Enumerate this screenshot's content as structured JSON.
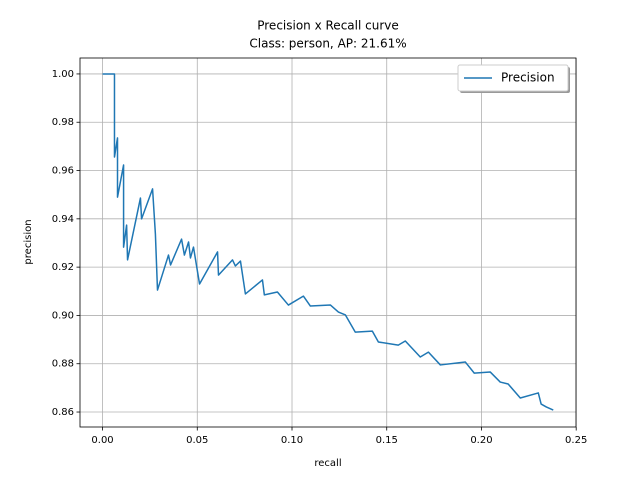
{
  "chart_data": {
    "type": "line",
    "title": "Precision x Recall curve",
    "subtitle": "Class: person, AP: 21.61%",
    "xlabel": "recall",
    "ylabel": "precision",
    "x": [
      0,
      0.0063,
      0.0063,
      0.0079,
      0.0079,
      0.0111,
      0.0111,
      0.0127,
      0.0132,
      0.02,
      0.0206,
      0.0264,
      0.0279,
      0.029,
      0.0348,
      0.0359,
      0.0417,
      0.0432,
      0.0454,
      0.0464,
      0.048,
      0.0491,
      0.0512,
      0.0607,
      0.0612,
      0.0686,
      0.0701,
      0.0728,
      0.0754,
      0.0844,
      0.0854,
      0.0923,
      0.0981,
      0.106,
      0.1097,
      0.1203,
      0.1245,
      0.1282,
      0.1334,
      0.1424,
      0.1456,
      0.1561,
      0.1598,
      0.1677,
      0.172,
      0.1783,
      0.1915,
      0.1962,
      0.2046,
      0.2099,
      0.2141,
      0.2205,
      0.23,
      0.2315,
      0.2342,
      0.2379
    ],
    "series": [
      {
        "name": "Precision",
        "color": "#1f77b4",
        "values": [
          1.0,
          1.0,
          0.9656,
          0.9735,
          0.949,
          0.9623,
          0.9283,
          0.9374,
          0.923,
          0.9486,
          0.94,
          0.9524,
          0.9337,
          0.9105,
          0.925,
          0.9209,
          0.9316,
          0.925,
          0.9304,
          0.9238,
          0.9283,
          0.923,
          0.913,
          0.9263,
          0.9167,
          0.923,
          0.9205,
          0.9225,
          0.9089,
          0.9147,
          0.9085,
          0.9097,
          0.9043,
          0.908,
          0.9039,
          0.9043,
          0.9014,
          0.9002,
          0.8931,
          0.8935,
          0.889,
          0.8877,
          0.8894,
          0.8828,
          0.8848,
          0.8795,
          0.8807,
          0.8761,
          0.8766,
          0.8724,
          0.8716,
          0.8658,
          0.8679,
          0.8633,
          0.8621,
          0.8608
        ]
      }
    ],
    "xlim": [
      -0.0119,
      0.2499
    ],
    "ylim": [
      0.8538,
      1.0066
    ],
    "xticks": [
      {
        "value": 0,
        "label": "0.00"
      },
      {
        "value": 0.05,
        "label": "0.05"
      },
      {
        "value": 0.1,
        "label": "0.10"
      },
      {
        "value": 0.15,
        "label": "0.15"
      },
      {
        "value": 0.2,
        "label": "0.20"
      },
      {
        "value": 0.25,
        "label": "0.25"
      }
    ],
    "yticks": [
      {
        "value": 0.86,
        "label": "0.86"
      },
      {
        "value": 0.88,
        "label": "0.88"
      },
      {
        "value": 0.9,
        "label": "0.90"
      },
      {
        "value": 0.92,
        "label": "0.92"
      },
      {
        "value": 0.94,
        "label": "0.94"
      },
      {
        "value": 0.96,
        "label": "0.96"
      },
      {
        "value": 0.98,
        "label": "0.98"
      },
      {
        "value": 1.0,
        "label": "1.00"
      }
    ],
    "grid": true,
    "legend": "upper right"
  }
}
